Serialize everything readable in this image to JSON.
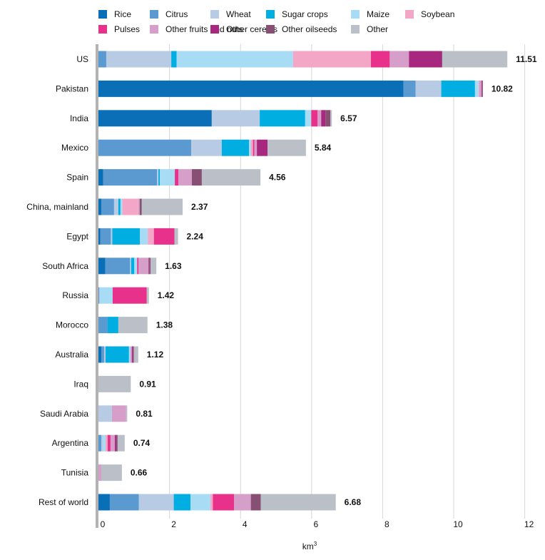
{
  "chart_data": {
    "type": "bar",
    "orientation": "horizontal",
    "stacked": true,
    "xlabel": "km",
    "xlabel_superscript": "3",
    "xlim": [
      0,
      12
    ],
    "xticks": [
      0,
      2,
      4,
      6,
      8,
      10,
      12
    ],
    "grid": "vertical",
    "legend_position": "top",
    "categories": [
      "US",
      "Pakistan",
      "India",
      "Mexico",
      "Spain",
      "China, mainland",
      "Egypt",
      "South Africa",
      "Russia",
      "Morocco",
      "Australia",
      "Iraq",
      "Saudi Arabia",
      "Argentina",
      "Tunisia",
      "Rest of world"
    ],
    "totals": [
      11.51,
      10.82,
      6.57,
      5.84,
      4.56,
      2.37,
      2.24,
      1.63,
      1.42,
      1.38,
      1.12,
      0.91,
      0.81,
      0.74,
      0.66,
      6.68
    ],
    "total_labels": [
      "11.51",
      "10.82",
      "6.57",
      "5.84",
      "4.56",
      "2.37",
      "2.24",
      "1.63",
      "1.42",
      "1.38",
      "1.12",
      "0.91",
      "0.81",
      "0.74",
      "0.66",
      "6.68"
    ],
    "series": [
      {
        "name": "Rice",
        "color": "#0a6fb7",
        "values": [
          0,
          8.59,
          3.19,
          0,
          0.13,
          0.08,
          0.05,
          0.19,
          0,
          0,
          0.08,
          0,
          0,
          0,
          0,
          0.32
        ]
      },
      {
        "name": "Citrus",
        "color": "#5b9ad0",
        "values": [
          0.22,
          0.34,
          0,
          2.61,
          1.52,
          0.36,
          0.3,
          0.7,
          0.02,
          0.26,
          0.08,
          0,
          0,
          0.08,
          0,
          0.82
        ]
      },
      {
        "name": "Wheat",
        "color": "#b8cbe5",
        "values": [
          1.83,
          0.72,
          1.35,
          0.86,
          0.04,
          0.12,
          0.04,
          0.03,
          0.02,
          0,
          0.04,
          0,
          0.38,
          0.04,
          0,
          0.98
        ]
      },
      {
        "name": "Sugar crops",
        "color": "#00aee2",
        "values": [
          0.15,
          0.95,
          1.28,
          0.77,
          0.04,
          0.06,
          0.78,
          0.09,
          0,
          0.3,
          0.66,
          0,
          0,
          0,
          0,
          0.47
        ]
      },
      {
        "name": "Maize",
        "color": "#a8dcf4",
        "values": [
          3.28,
          0.1,
          0.17,
          0.05,
          0.42,
          0.05,
          0.22,
          0.08,
          0.36,
          0,
          0.04,
          0,
          0,
          0.08,
          0,
          0.56
        ]
      },
      {
        "name": "Soybean",
        "color": "#f4a6c6",
        "values": [
          2.19,
          0.02,
          0,
          0.06,
          0,
          0.45,
          0.17,
          0,
          0,
          0,
          0,
          0,
          0,
          0.06,
          0,
          0.07
        ]
      },
      {
        "name": "Pulses",
        "color": "#e8318a",
        "values": [
          0.53,
          0,
          0.18,
          0.04,
          0.1,
          0,
          0.58,
          0.04,
          0.96,
          0,
          0,
          0,
          0,
          0.08,
          0,
          0.6
        ]
      },
      {
        "name": "Other fruits and nuts",
        "color": "#d59fca",
        "values": [
          0.54,
          0.06,
          0.1,
          0.07,
          0.38,
          0.04,
          0,
          0.28,
          0,
          0,
          0.04,
          0,
          0.4,
          0.12,
          0.08,
          0.47
        ]
      },
      {
        "name": "Other cereals",
        "color": "#a8287f",
        "values": [
          0.92,
          0.02,
          0.12,
          0.3,
          0,
          0,
          0,
          0.02,
          0,
          0,
          0.04,
          0,
          0,
          0.04,
          0,
          0
        ]
      },
      {
        "name": "Other oilseeds",
        "color": "#864f73",
        "values": [
          0.02,
          0.02,
          0.14,
          0,
          0.28,
          0.06,
          0,
          0.04,
          0,
          0,
          0.02,
          0,
          0,
          0.04,
          0,
          0.28
        ]
      },
      {
        "name": "Other",
        "color": "#bbc0c8",
        "values": [
          1.83,
          0,
          0.04,
          1.08,
          1.65,
          1.15,
          0.1,
          0.16,
          0.06,
          0.82,
          0.12,
          0.91,
          0.03,
          0.2,
          0.58,
          2.11
        ]
      }
    ]
  }
}
